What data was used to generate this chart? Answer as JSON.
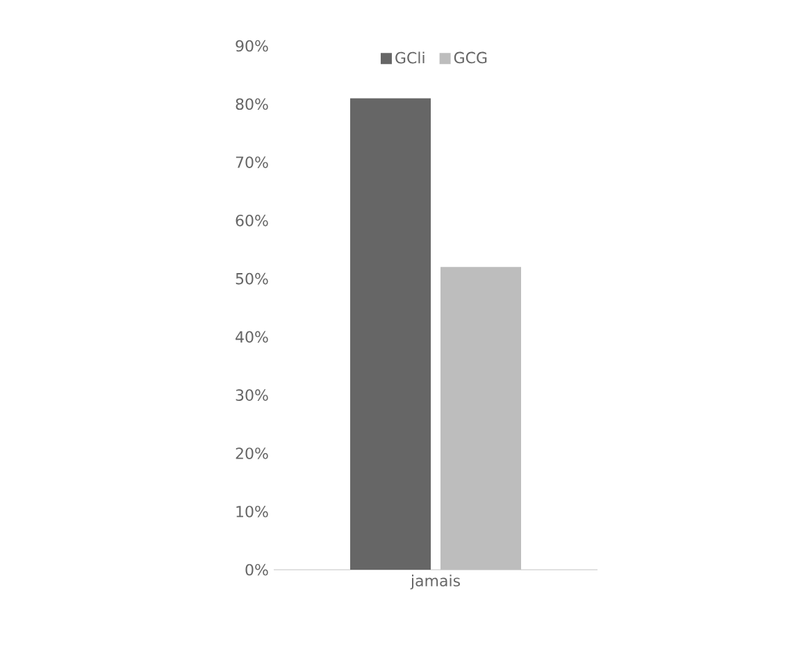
{
  "chart_data": {
    "type": "bar",
    "categories": [
      "jamais"
    ],
    "series": [
      {
        "name": "GCli",
        "color": "#666666",
        "values": [
          81
        ]
      },
      {
        "name": "GCG",
        "color": "#bdbdbd",
        "values": [
          52
        ]
      }
    ],
    "ylim": [
      0,
      90
    ],
    "yticks": [
      {
        "value": 0,
        "label": "0%"
      },
      {
        "value": 10,
        "label": "10%"
      },
      {
        "value": 20,
        "label": "20%"
      },
      {
        "value": 30,
        "label": "30%"
      },
      {
        "value": 40,
        "label": "40%"
      },
      {
        "value": 50,
        "label": "50%"
      },
      {
        "value": 60,
        "label": "60%"
      },
      {
        "value": 70,
        "label": "70%"
      },
      {
        "value": 80,
        "label": "80%"
      },
      {
        "value": 90,
        "label": "90%"
      }
    ],
    "legend": "top"
  }
}
